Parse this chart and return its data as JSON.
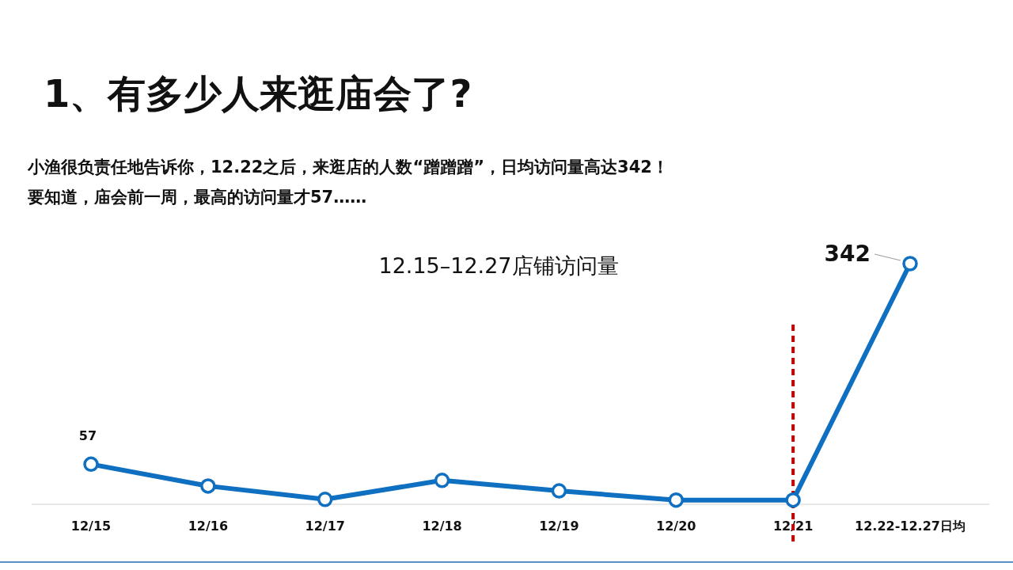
{
  "chart_data": {
    "type": "line",
    "title": "12.15–12.27店铺访问量",
    "categories": [
      "12/15",
      "12/16",
      "12/17",
      "12/18",
      "12/19",
      "12/20",
      "12/21",
      "12.22-12.27日均"
    ],
    "series": [
      {
        "color": "#0f6fc0",
        "values": [
          57,
          26,
          7,
          34,
          19,
          6,
          6,
          342
        ],
        "value_labels": [
          "57",
          null,
          null,
          null,
          null,
          null,
          null,
          "342"
        ]
      }
    ],
    "marker": "circle",
    "line_style": "solid",
    "ref_lines": [
      {
        "axis": "x",
        "value": "12/21",
        "color": "#c00000",
        "line_style": "dashed"
      }
    ],
    "annotations": [
      "1、有多少人来逛庙会了?",
      "小渔很负责任地告诉你，12.22之后，来逛店的人数“蹭蹭蹭”，日均访问量高达342！",
      "要知道，庙会前一周，最高的访问量才57……"
    ]
  }
}
